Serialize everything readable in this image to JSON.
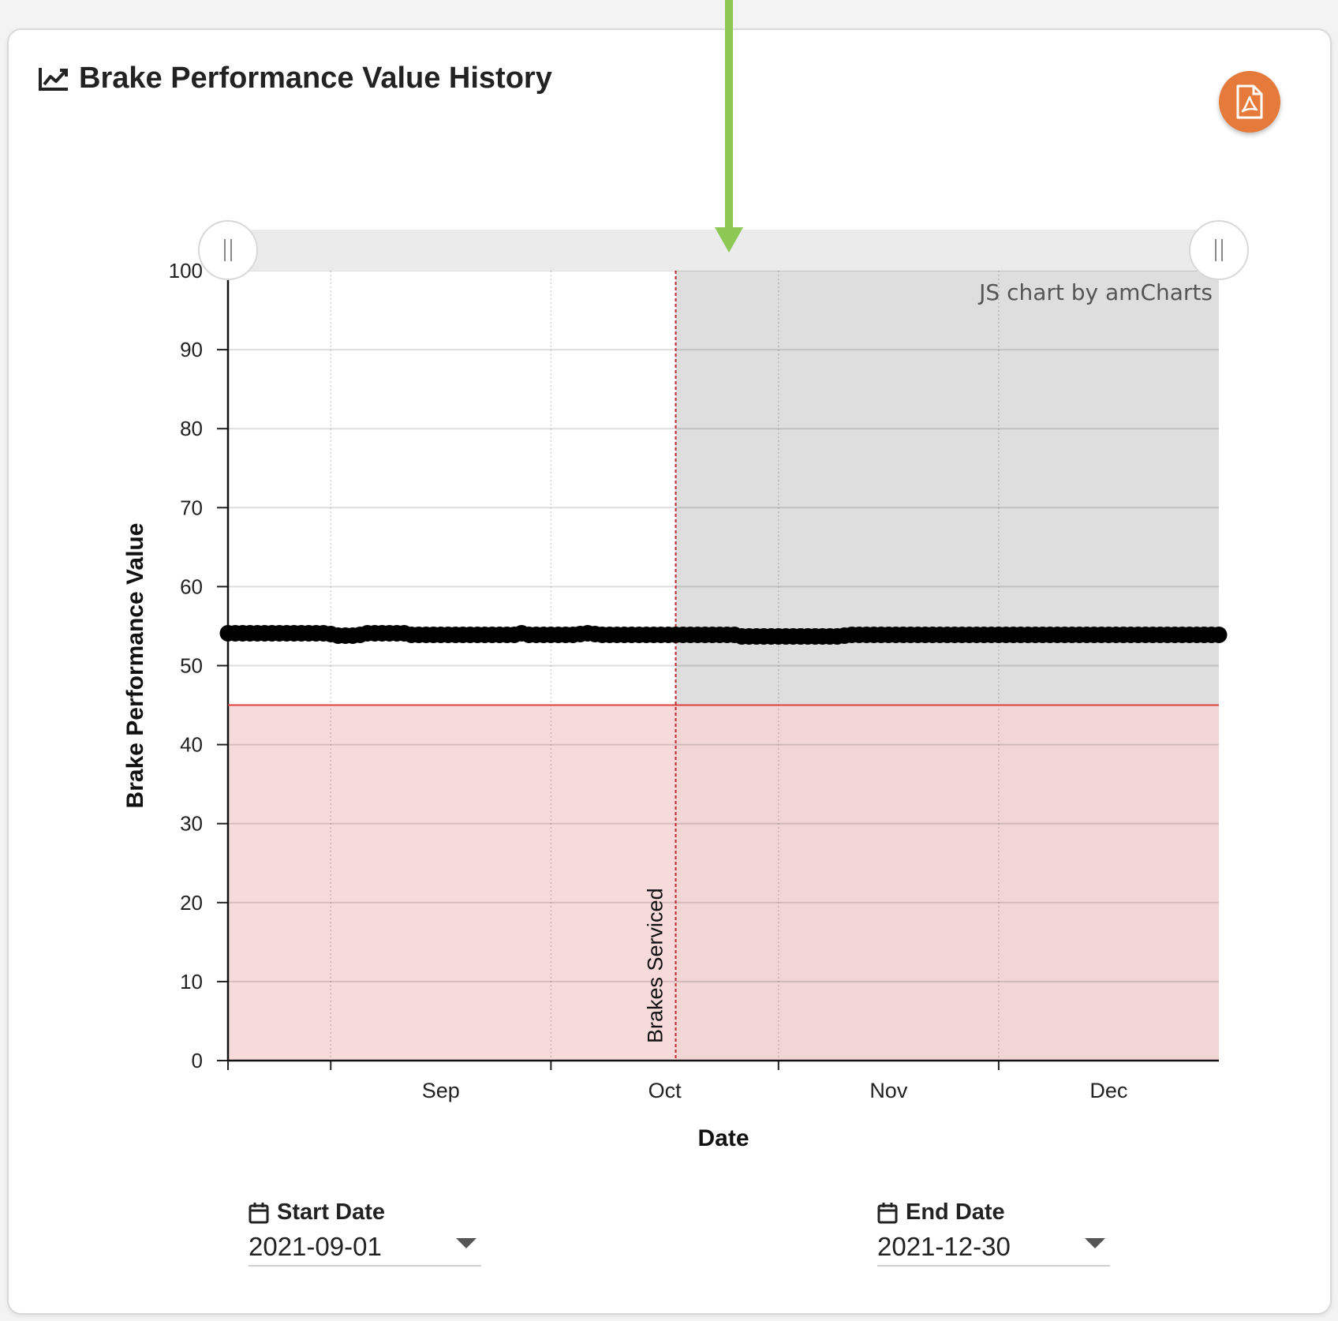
{
  "card": {
    "title": "Brake Performance Value History",
    "title_icon": "line-chart-icon",
    "export_icon": "pdf-file-icon"
  },
  "start_date": {
    "label": "Start Date",
    "value": "2021-09-01",
    "icon": "calendar-icon"
  },
  "end_date": {
    "label": "End Date",
    "value": "2021-12-30",
    "icon": "calendar-icon"
  },
  "colors": {
    "export_button": "#e57a3b",
    "annotation_arrow": "#8dc854",
    "threshold_line": "#e0403c",
    "threshold_fill": "#f6d4d3",
    "selection_shade": "#dedede",
    "series": "#000000"
  },
  "chart_data": {
    "type": "scatter",
    "xlabel": "Date",
    "ylabel": "Brake Performance Value",
    "x_ticks": [
      "Sep",
      "Oct",
      "Nov",
      "Dec"
    ],
    "x_range": [
      "2021-08-18",
      "2021-12-31"
    ],
    "ylim": [
      0,
      100
    ],
    "y_ticks": [
      0,
      10,
      20,
      30,
      40,
      50,
      60,
      70,
      80,
      90,
      100
    ],
    "grid": true,
    "credit": "JS chart by amCharts",
    "threshold": {
      "value": 45,
      "fill_below": true
    },
    "event": {
      "date": "2021-10-18",
      "label": "Brakes Serviced"
    },
    "shaded_range": [
      "2021-10-18",
      "2021-12-31"
    ],
    "scrollbar": {
      "start": 0,
      "end": 1
    },
    "series": [
      {
        "start_date": "2021-08-18",
        "values": [
          54.1,
          54.1,
          54.1,
          54.1,
          54.1,
          54.1,
          54.1,
          54.1,
          54.1,
          54.1,
          54.1,
          54.1,
          54.1,
          54.1,
          54.0,
          53.8,
          53.8,
          53.8,
          53.9,
          54.1,
          54.1,
          54.1,
          54.1,
          54.1,
          54.1,
          53.9,
          53.9,
          53.9,
          53.9,
          53.9,
          53.9,
          53.9,
          53.9,
          53.9,
          53.9,
          53.9,
          53.9,
          53.9,
          53.9,
          53.9,
          54.1,
          53.9,
          53.9,
          53.9,
          53.9,
          53.9,
          53.9,
          53.9,
          54.0,
          54.1,
          54.0,
          53.9,
          53.9,
          53.9,
          53.9,
          53.9,
          53.9,
          53.9,
          53.9,
          53.9,
          53.9,
          53.9,
          53.9,
          53.9,
          53.9,
          53.9,
          53.9,
          53.9,
          53.9,
          53.9,
          53.7,
          53.7,
          53.7,
          53.7,
          53.7,
          53.7,
          53.7,
          53.7,
          53.7,
          53.7,
          53.7,
          53.7,
          53.7,
          53.7,
          53.8,
          53.9,
          53.9,
          53.9,
          53.9,
          53.9,
          53.9,
          53.9,
          53.9,
          53.9,
          53.9,
          53.9,
          53.9,
          53.9,
          53.9,
          53.9,
          53.9,
          53.9,
          53.9,
          53.9,
          53.9,
          53.9,
          53.9,
          53.9,
          53.9,
          53.9,
          53.9,
          53.9,
          53.9,
          53.9,
          53.9,
          53.9,
          53.9,
          53.9,
          53.9,
          53.9,
          53.9,
          53.9,
          53.9,
          53.9,
          53.9,
          53.9,
          53.9,
          53.9,
          53.9,
          53.9,
          53.9,
          53.9,
          53.9,
          53.9,
          53.9,
          53.9
        ]
      }
    ]
  }
}
